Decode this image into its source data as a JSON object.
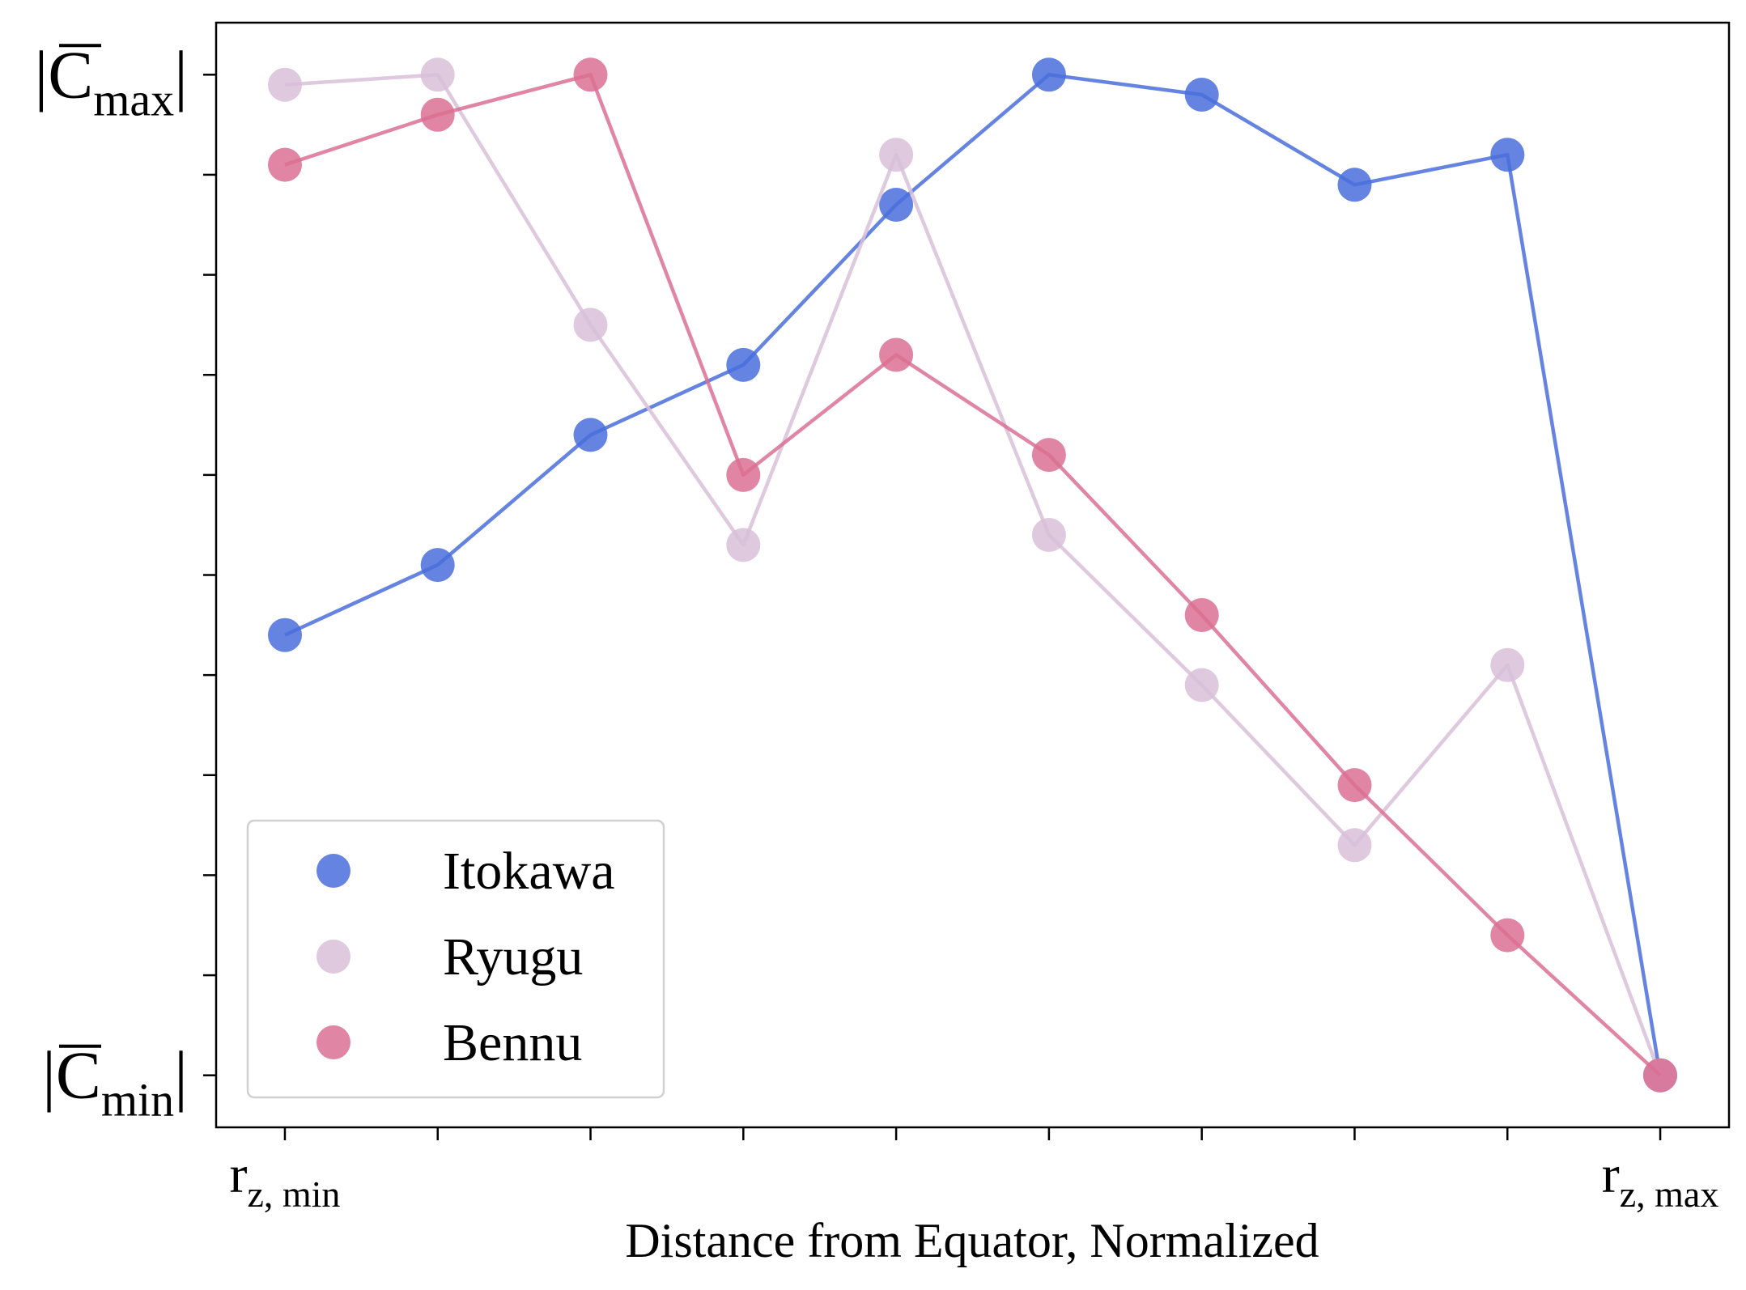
{
  "chart_data": {
    "type": "line",
    "xlabel": "Distance from Equator, Normalized",
    "xlim": [
      -0.45,
      9.45
    ],
    "ylim": [
      -0.052,
      1.052
    ],
    "x": [
      0,
      1,
      2,
      3,
      4,
      5,
      6,
      7,
      8,
      9
    ],
    "x_ticks": [
      {
        "pos": 0,
        "base": "r",
        "sub": "z, min"
      },
      {
        "pos": 1,
        "base": "",
        "sub": ""
      },
      {
        "pos": 2,
        "base": "",
        "sub": ""
      },
      {
        "pos": 3,
        "base": "",
        "sub": ""
      },
      {
        "pos": 4,
        "base": "",
        "sub": ""
      },
      {
        "pos": 5,
        "base": "",
        "sub": ""
      },
      {
        "pos": 6,
        "base": "",
        "sub": ""
      },
      {
        "pos": 7,
        "base": "",
        "sub": ""
      },
      {
        "pos": 8,
        "base": "",
        "sub": ""
      },
      {
        "pos": 9,
        "base": "r",
        "sub": "z, max"
      }
    ],
    "y_ticks": [
      {
        "pos": 1.0,
        "base": "C",
        "sub": "max",
        "bar": true,
        "abs": true
      },
      {
        "pos": 0.9,
        "base": "",
        "sub": ""
      },
      {
        "pos": 0.8,
        "base": "",
        "sub": ""
      },
      {
        "pos": 0.7,
        "base": "",
        "sub": ""
      },
      {
        "pos": 0.6,
        "base": "",
        "sub": ""
      },
      {
        "pos": 0.5,
        "base": "",
        "sub": ""
      },
      {
        "pos": 0.4,
        "base": "",
        "sub": ""
      },
      {
        "pos": 0.3,
        "base": "",
        "sub": ""
      },
      {
        "pos": 0.2,
        "base": "",
        "sub": ""
      },
      {
        "pos": 0.1,
        "base": "",
        "sub": ""
      },
      {
        "pos": 0.0,
        "base": "C",
        "sub": "min",
        "bar": true,
        "abs": true
      }
    ],
    "grid": false,
    "legend_position": "lower-left",
    "series": [
      {
        "name": "Itokawa",
        "color": "#4a6fdc",
        "alpha": 0.85,
        "values": [
          0.44,
          0.51,
          0.64,
          0.71,
          0.87,
          1.0,
          0.98,
          0.89,
          0.92,
          0.0
        ]
      },
      {
        "name": "Ryugu",
        "color": "#d8bfd8",
        "alpha": 0.85,
        "values": [
          0.99,
          1.0,
          0.75,
          0.53,
          0.92,
          0.54,
          0.39,
          0.23,
          0.41,
          0.0
        ]
      },
      {
        "name": "Bennu",
        "color": "#db7093",
        "alpha": 0.85,
        "values": [
          0.91,
          0.96,
          1.0,
          0.6,
          0.72,
          0.62,
          0.46,
          0.29,
          0.14,
          0.0
        ]
      }
    ]
  }
}
